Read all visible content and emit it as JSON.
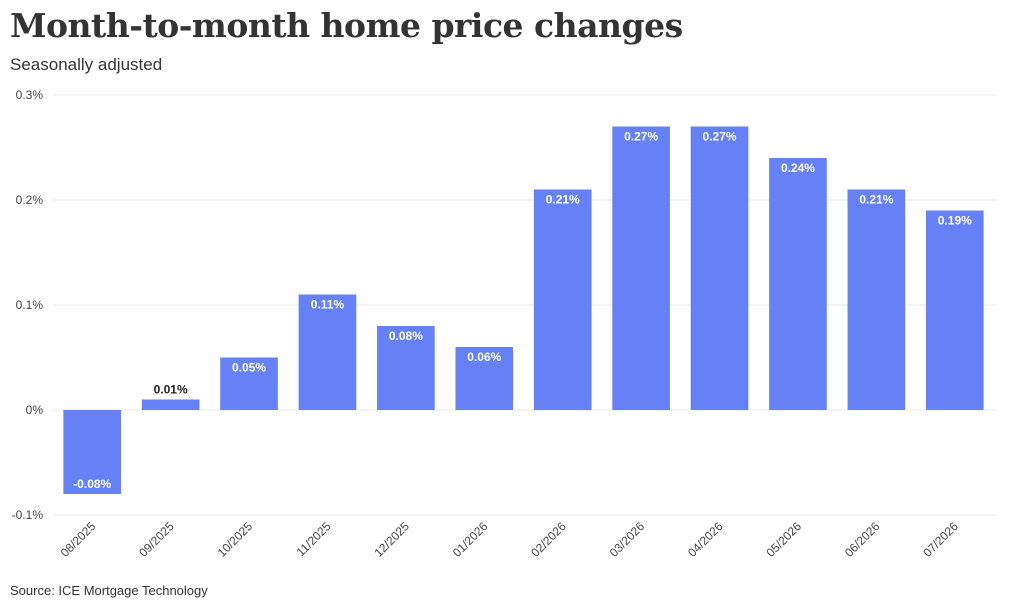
{
  "chart_data": {
    "type": "bar",
    "title": "Month-to-month home price changes",
    "subtitle": "Seasonally adjusted",
    "source": "Source: ICE Mortgage Technology",
    "categories": [
      "08/2025",
      "09/2025",
      "10/2025",
      "11/2025",
      "12/2025",
      "01/2026",
      "02/2026",
      "03/2026",
      "04/2026",
      "05/2026",
      "06/2026",
      "07/2026"
    ],
    "values": [
      -0.08,
      0.01,
      0.05,
      0.11,
      0.08,
      0.06,
      0.21,
      0.27,
      0.27,
      0.24,
      0.21,
      0.19
    ],
    "data_labels": [
      "-0.08%",
      "0.01%",
      "0.05%",
      "0.11%",
      "0.08%",
      "0.06%",
      "0.21%",
      "0.27%",
      "0.27%",
      "0.24%",
      "0.21%",
      "0.19%"
    ],
    "y_ticks": [
      {
        "value": 0.3,
        "label": "0.3%"
      },
      {
        "value": 0.2,
        "label": "0.2%"
      },
      {
        "value": 0.1,
        "label": "0.1%"
      },
      {
        "value": 0,
        "label": "0%"
      },
      {
        "value": -0.1,
        "label": "-0.1%"
      }
    ],
    "ylim": [
      -0.1,
      0.3
    ],
    "xlabel": "",
    "ylabel": "",
    "grid": true,
    "legend": "none",
    "bar_color": "#6680f5"
  }
}
